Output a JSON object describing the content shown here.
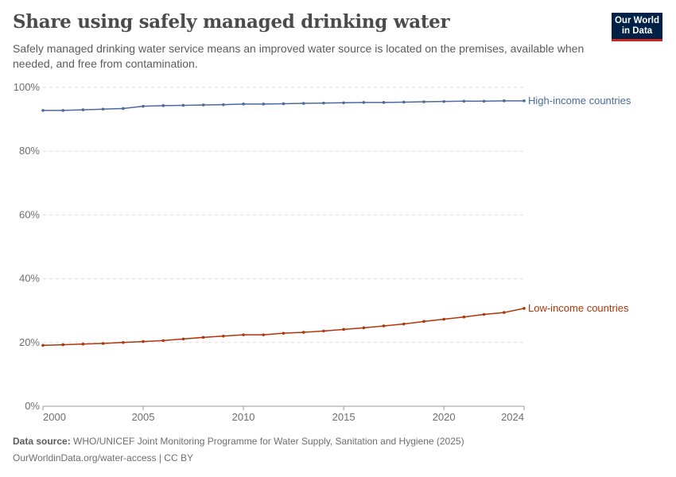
{
  "header": {
    "title": "Share using safely managed drinking water",
    "subtitle": "Safely managed drinking water service means an improved water source is located on the premises, available when needed, and free from contamination.",
    "logo": "Our World in Data"
  },
  "footer": {
    "source_label": "Data source:",
    "source": "WHO/UNICEF Joint Monitoring Programme for Water Supply, Sanitation and Hygiene (2025)",
    "url": "OurWorldinData.org/water-access | CC BY"
  },
  "chart_data": {
    "type": "line",
    "title": "Share using safely managed drinking water",
    "xlim": [
      2000,
      2024
    ],
    "ylim": [
      0,
      100
    ],
    "x_ticks": [
      2000,
      2005,
      2010,
      2015,
      2020,
      2024
    ],
    "y_ticks": [
      0,
      20,
      40,
      60,
      80,
      100
    ],
    "y_tick_labels": [
      "0%",
      "20%",
      "40%",
      "60%",
      "80%",
      "100%"
    ],
    "grid": "horizontal dashed",
    "legend": "inline labels at line ends",
    "x": [
      2000,
      2001,
      2002,
      2003,
      2004,
      2005,
      2006,
      2007,
      2008,
      2009,
      2010,
      2011,
      2012,
      2013,
      2014,
      2015,
      2016,
      2017,
      2018,
      2019,
      2020,
      2021,
      2022,
      2023,
      2024
    ],
    "series": [
      {
        "name": "High-income countries",
        "color": "#4c6a9c",
        "values": [
          92.8,
          92.8,
          93.0,
          93.2,
          93.4,
          94.1,
          94.3,
          94.4,
          94.5,
          94.6,
          94.8,
          94.8,
          94.9,
          95.0,
          95.1,
          95.2,
          95.3,
          95.3,
          95.4,
          95.5,
          95.6,
          95.7,
          95.7,
          95.8,
          95.8
        ]
      },
      {
        "name": "Low-income countries",
        "color": "#b13507",
        "values": [
          19.1,
          19.3,
          19.5,
          19.7,
          20.0,
          20.3,
          20.6,
          21.1,
          21.6,
          22.0,
          22.4,
          22.4,
          22.9,
          23.2,
          23.6,
          24.1,
          24.6,
          25.2,
          25.8,
          26.6,
          27.3,
          28.0,
          28.8,
          29.4,
          30.7
        ]
      }
    ]
  }
}
